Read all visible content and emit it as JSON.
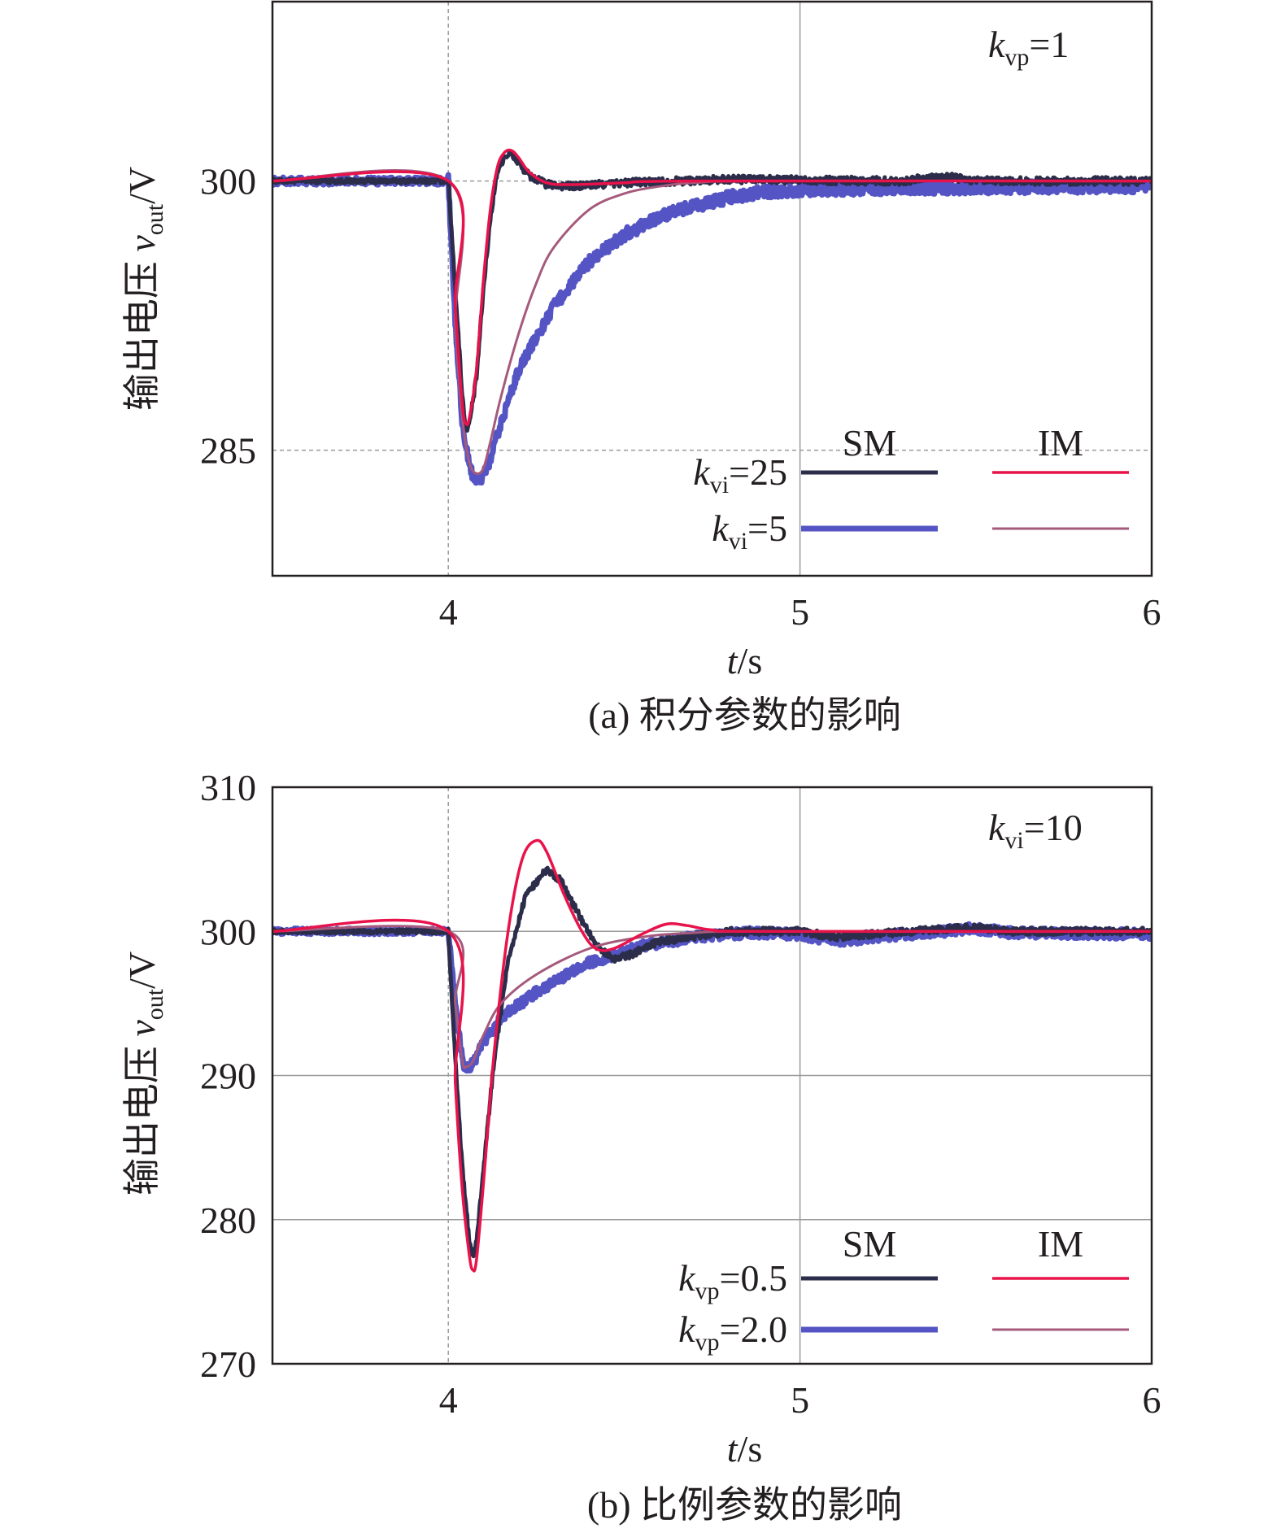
{
  "chart_data": [
    {
      "type": "line",
      "caption": "(a) 积分参数的影响",
      "ylabel": {
        "main": "输出电压 ",
        "var": "v",
        "sub": "out",
        "unit": "/V"
      },
      "xlabel": {
        "var": "t",
        "unit": "/s"
      },
      "annotation": {
        "var": "k",
        "sub": "vp",
        "rest": "=1"
      },
      "xlim": [
        3.5,
        6
      ],
      "ylim": [
        278,
        310
      ],
      "xticks": [
        4,
        5,
        6
      ],
      "xtick_labels": [
        "4",
        "5",
        "6"
      ],
      "yticks": [
        285,
        300
      ],
      "ytick_labels": [
        "285",
        "300"
      ],
      "grid": true,
      "legend": {
        "placement": "bottom-right",
        "headers": [
          "SM",
          "IM"
        ],
        "rows": [
          {
            "var": "k",
            "sub": "vi",
            "rest": "=25"
          },
          {
            "var": "k",
            "sub": "vi",
            "rest": "=5"
          }
        ]
      },
      "series": [
        {
          "legend_row": 0,
          "legend_col": 0,
          "color": "#2b2d4a",
          "width": 5,
          "noise": 0.22,
          "points": [
            [
              3.5,
              300
            ],
            [
              4.0,
              300
            ],
            [
              4.02,
              294
            ],
            [
              4.04,
              288
            ],
            [
              4.05,
              286.2
            ],
            [
              4.06,
              286.5
            ],
            [
              4.08,
              289
            ],
            [
              4.1,
              294
            ],
            [
              4.12,
              298
            ],
            [
              4.14,
              300.6
            ],
            [
              4.16,
              301.4
            ],
            [
              4.18,
              301.5
            ],
            [
              4.2,
              301
            ],
            [
              4.23,
              300.3
            ],
            [
              4.28,
              299.8
            ],
            [
              4.35,
              299.7
            ],
            [
              4.5,
              299.9
            ],
            [
              4.8,
              300.1
            ],
            [
              5.0,
              300.05
            ],
            [
              5.3,
              300.0
            ],
            [
              5.4,
              300.3
            ],
            [
              5.5,
              300.0
            ],
            [
              6.0,
              300.0
            ]
          ]
        },
        {
          "legend_row": 0,
          "legend_col": 1,
          "color": "#e8134a",
          "width": 3.5,
          "noise": 0,
          "points": [
            [
              3.5,
              300
            ],
            [
              4.0,
              300
            ],
            [
              4.02,
              293
            ],
            [
              4.04,
              287.5
            ],
            [
              4.05,
              286.5
            ],
            [
              4.06,
              286.8
            ],
            [
              4.08,
              289.5
            ],
            [
              4.1,
              294.5
            ],
            [
              4.12,
              298.5
            ],
            [
              4.14,
              300.8
            ],
            [
              4.16,
              301.6
            ],
            [
              4.18,
              301.7
            ],
            [
              4.2,
              301.3
            ],
            [
              4.23,
              300.5
            ],
            [
              4.28,
              299.9
            ],
            [
              4.35,
              299.8
            ],
            [
              4.5,
              299.9
            ],
            [
              4.7,
              300.0
            ],
            [
              6.0,
              300.0
            ]
          ]
        },
        {
          "legend_row": 1,
          "legend_col": 0,
          "color": "#5454c4",
          "width": 7,
          "noise": 0.35,
          "points": [
            [
              3.5,
              300
            ],
            [
              4.0,
              300
            ],
            [
              4.02,
              292
            ],
            [
              4.04,
              286.5
            ],
            [
              4.06,
              284
            ],
            [
              4.08,
              283.3
            ],
            [
              4.1,
              283.5
            ],
            [
              4.12,
              284.5
            ],
            [
              4.15,
              286.5
            ],
            [
              4.2,
              289.5
            ],
            [
              4.3,
              293
            ],
            [
              4.4,
              295.5
            ],
            [
              4.5,
              297.0
            ],
            [
              4.6,
              298.0
            ],
            [
              4.7,
              298.6
            ],
            [
              4.8,
              299.1
            ],
            [
              4.9,
              299.4
            ],
            [
              5.0,
              299.5
            ],
            [
              5.2,
              299.6
            ],
            [
              5.5,
              299.65
            ],
            [
              6.0,
              299.7
            ]
          ]
        },
        {
          "legend_row": 1,
          "legend_col": 1,
          "color": "#a55a7c",
          "width": 3,
          "noise": 0,
          "points": [
            [
              3.5,
              300
            ],
            [
              4.0,
              300
            ],
            [
              4.02,
              292
            ],
            [
              4.04,
              286.8
            ],
            [
              4.06,
              284.3
            ],
            [
              4.08,
              283.7
            ],
            [
              4.1,
              284.0
            ],
            [
              4.12,
              285.5
            ],
            [
              4.15,
              288
            ],
            [
              4.2,
              291.5
            ],
            [
              4.25,
              294.3
            ],
            [
              4.3,
              296.3
            ],
            [
              4.4,
              298.4
            ],
            [
              4.5,
              299.3
            ],
            [
              4.6,
              299.7
            ],
            [
              4.7,
              299.9
            ],
            [
              4.9,
              300.0
            ],
            [
              6.0,
              300.0
            ]
          ]
        }
      ]
    },
    {
      "type": "line",
      "caption": "(b) 比例参数的影响",
      "ylabel": {
        "main": "输出电压 ",
        "var": "v",
        "sub": "out",
        "unit": "/V"
      },
      "xlabel": {
        "var": "t",
        "unit": "/s"
      },
      "annotation": {
        "var": "k",
        "sub": "vi",
        "rest": "=10"
      },
      "xlim": [
        3.5,
        6
      ],
      "ylim": [
        270,
        310
      ],
      "xticks": [
        4,
        5,
        6
      ],
      "xtick_labels": [
        "4",
        "5",
        "6"
      ],
      "yticks": [
        270,
        280,
        290,
        300,
        310
      ],
      "ytick_labels": [
        "270",
        "280",
        "290",
        "300",
        "310"
      ],
      "grid": true,
      "legend": {
        "placement": "bottom-right",
        "headers": [
          "SM",
          "IM"
        ],
        "rows": [
          {
            "var": "k",
            "sub": "vp",
            "rest": "=0.5"
          },
          {
            "var": "k",
            "sub": "vp",
            "rest": "=2.0"
          }
        ]
      },
      "series": [
        {
          "legend_row": 0,
          "legend_col": 0,
          "color": "#2b2d4a",
          "width": 5,
          "noise": 0.25,
          "points": [
            [
              3.5,
              300
            ],
            [
              4.0,
              300
            ],
            [
              4.02,
              291
            ],
            [
              4.04,
              283.5
            ],
            [
              4.06,
              278.5
            ],
            [
              4.07,
              277.5
            ],
            [
              4.08,
              278.5
            ],
            [
              4.1,
              283.5
            ],
            [
              4.13,
              291
            ],
            [
              4.17,
              298
            ],
            [
              4.22,
              302.5
            ],
            [
              4.28,
              304.3
            ],
            [
              4.32,
              303.5
            ],
            [
              4.37,
              301.2
            ],
            [
              4.42,
              299
            ],
            [
              4.47,
              298.1
            ],
            [
              4.52,
              298.4
            ],
            [
              4.6,
              299.3
            ],
            [
              4.8,
              300.0
            ],
            [
              5.0,
              300.0
            ],
            [
              5.1,
              299.6
            ],
            [
              5.2,
              299.8
            ],
            [
              5.5,
              300.3
            ],
            [
              5.6,
              300.0
            ],
            [
              6.0,
              300.0
            ]
          ]
        },
        {
          "legend_row": 0,
          "legend_col": 1,
          "color": "#e8134a",
          "width": 3.5,
          "noise": 0,
          "points": [
            [
              3.5,
              300
            ],
            [
              4.0,
              300
            ],
            [
              4.02,
              289.5
            ],
            [
              4.04,
              282
            ],
            [
              4.06,
              277.5
            ],
            [
              4.07,
              276.5
            ],
            [
              4.08,
              277.2
            ],
            [
              4.1,
              282.5
            ],
            [
              4.13,
              291.5
            ],
            [
              4.17,
              300
            ],
            [
              4.21,
              305
            ],
            [
              4.25,
              306.3
            ],
            [
              4.28,
              305.5
            ],
            [
              4.33,
              302.5
            ],
            [
              4.38,
              300
            ],
            [
              4.42,
              298.8
            ],
            [
              4.47,
              298.8
            ],
            [
              4.55,
              299.8
            ],
            [
              4.62,
              300.5
            ],
            [
              4.68,
              300.4
            ],
            [
              4.75,
              300.1
            ],
            [
              4.9,
              300.0
            ],
            [
              6.0,
              300.0
            ]
          ]
        },
        {
          "legend_row": 1,
          "legend_col": 0,
          "color": "#5454c4",
          "width": 7,
          "noise": 0.35,
          "points": [
            [
              3.5,
              300
            ],
            [
              4.0,
              300
            ],
            [
              4.02,
              295
            ],
            [
              4.04,
              291
            ],
            [
              4.05,
              290.5
            ],
            [
              4.07,
              290.8
            ],
            [
              4.1,
              292.3
            ],
            [
              4.15,
              294.0
            ],
            [
              4.25,
              295.8
            ],
            [
              4.4,
              297.8
            ],
            [
              4.55,
              299.0
            ],
            [
              4.7,
              299.6
            ],
            [
              4.85,
              299.9
            ],
            [
              5.0,
              299.8
            ],
            [
              5.1,
              299.3
            ],
            [
              5.2,
              299.6
            ],
            [
              5.5,
              300.2
            ],
            [
              5.6,
              299.9
            ],
            [
              6.0,
              299.8
            ]
          ]
        },
        {
          "legend_row": 1,
          "legend_col": 1,
          "color": "#a55a7c",
          "width": 3,
          "noise": 0,
          "points": [
            [
              3.5,
              300
            ],
            [
              4.0,
              300
            ],
            [
              4.02,
              295
            ],
            [
              4.04,
              291
            ],
            [
              4.05,
              290.6
            ],
            [
              4.07,
              291
            ],
            [
              4.1,
              292.8
            ],
            [
              4.15,
              295
            ],
            [
              4.25,
              297
            ],
            [
              4.4,
              298.8
            ],
            [
              4.55,
              299.6
            ],
            [
              4.7,
              299.9
            ],
            [
              4.9,
              300.0
            ],
            [
              6.0,
              300.0
            ]
          ]
        }
      ]
    }
  ]
}
